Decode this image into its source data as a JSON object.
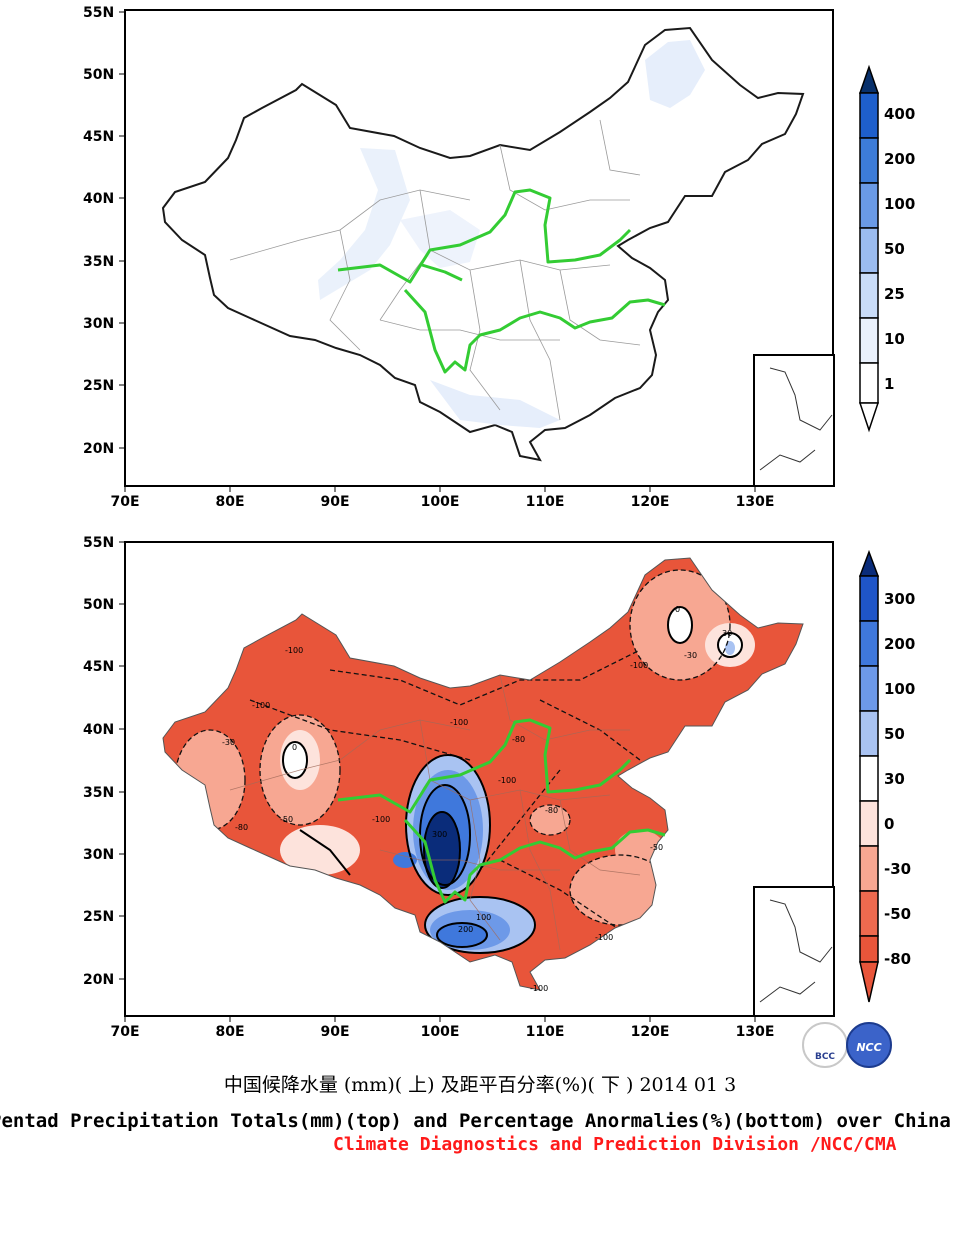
{
  "top_map": {
    "lat_labels": [
      "55N",
      "50N",
      "45N",
      "40N",
      "35N",
      "30N",
      "25N",
      "20N"
    ],
    "lon_labels": [
      "70E",
      "80E",
      "90E",
      "100E",
      "110E",
      "120E",
      "130E"
    ],
    "colorbar": {
      "labels": [
        "400",
        "200",
        "100",
        "50",
        "25",
        "10",
        "1"
      ],
      "colors": [
        "#08306b",
        "#1e5fcc",
        "#3d7cd8",
        "#6a9ae6",
        "#9bbcf0",
        "#c9dcf8",
        "#ffffff"
      ]
    }
  },
  "bottom_map": {
    "lat_labels": [
      "55N",
      "50N",
      "45N",
      "40N",
      "35N",
      "30N",
      "25N",
      "20N"
    ],
    "lon_labels": [
      "70E",
      "80E",
      "90E",
      "100E",
      "110E",
      "120E",
      "130E"
    ],
    "colorbar": {
      "labels": [
        "300",
        "200",
        "100",
        "50",
        "30",
        "0",
        "-30",
        "-50",
        "-80"
      ],
      "colors": [
        "#0a2c7a",
        "#1f55c8",
        "#3f78dc",
        "#6d99e8",
        "#a9c3f2",
        "#ffffff",
        "#fde3dc",
        "#f7a792",
        "#ee6a4f",
        "#e8553a"
      ]
    },
    "contour_labels": [
      "-100",
      "-100",
      "-100",
      "-100",
      "-100",
      "-100",
      "-100",
      "-100",
      "-80",
      "-80",
      "-80",
      "-50",
      "-50",
      "-30",
      "-30",
      "0",
      "0",
      "30",
      "100",
      "200",
      "300"
    ]
  },
  "logos": {
    "bcc": "BCC",
    "ncc": "NCC"
  },
  "caption": {
    "chinese": "中国候降水量 (mm)( 上) 及距平百分率(%)( 下 ) 2014 01 3",
    "english": "Pentad Precipitation Totals(mm)(top) and Percentage Anormalies(%)(bottom) over China",
    "credit": "Climate Diagnostics and Prediction Division /NCC/CMA"
  }
}
